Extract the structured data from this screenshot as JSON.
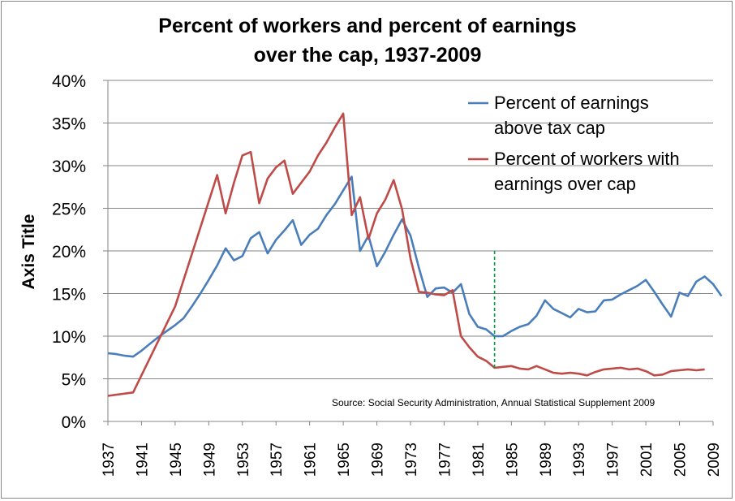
{
  "chart_data": {
    "type": "line",
    "title_line1": "Percent of workers and percent of earnings",
    "title_line2": "over the cap, 1937-2009",
    "ylabel": "Axis Title",
    "ylim": [
      0,
      40
    ],
    "xlim": [
      1937,
      2009
    ],
    "yticks": [
      "0%",
      "5%",
      "10%",
      "15%",
      "20%",
      "25%",
      "30%",
      "35%",
      "40%"
    ],
    "xticks": [
      "1937",
      "1941",
      "1945",
      "1949",
      "1953",
      "1957",
      "1961",
      "1965",
      "1969",
      "1973",
      "1977",
      "1981",
      "1985",
      "1989",
      "1993",
      "1997",
      "2001",
      "2005",
      "2009"
    ],
    "grid": "horizontal",
    "legend_position": "top-right",
    "source_note": "Source: Social Security Administration, Annual Statistical Supplement 2009",
    "vline": {
      "x": 1983,
      "color": "#009944",
      "style": "dashed"
    },
    "series": [
      {
        "name_line1": "Percent of earnings",
        "name_line2": "above tax cap",
        "color": "#4a7ebb",
        "points": [
          [
            1937,
            8.0
          ],
          [
            1938,
            7.9
          ],
          [
            1939,
            7.7
          ],
          [
            1940,
            7.6
          ],
          [
            1941,
            8.3
          ],
          [
            1942,
            9.1
          ],
          [
            1943,
            9.9
          ],
          [
            1944,
            10.6
          ],
          [
            1945,
            11.3
          ],
          [
            1946,
            12.1
          ],
          [
            1947,
            13.5
          ],
          [
            1948,
            15.0
          ],
          [
            1949,
            16.6
          ],
          [
            1950,
            18.3
          ],
          [
            1951,
            20.3
          ],
          [
            1952,
            18.9
          ],
          [
            1953,
            19.4
          ],
          [
            1954,
            21.5
          ],
          [
            1955,
            22.2
          ],
          [
            1956,
            19.7
          ],
          [
            1957,
            21.3
          ],
          [
            1958,
            22.4
          ],
          [
            1959,
            23.6
          ],
          [
            1960,
            20.7
          ],
          [
            1961,
            21.9
          ],
          [
            1962,
            22.6
          ],
          [
            1963,
            24.2
          ],
          [
            1964,
            25.5
          ],
          [
            1965,
            27.1
          ],
          [
            1966,
            28.7
          ],
          [
            1967,
            20.0
          ],
          [
            1968,
            21.8
          ],
          [
            1969,
            18.2
          ],
          [
            1970,
            19.9
          ],
          [
            1971,
            21.9
          ],
          [
            1972,
            23.7
          ],
          [
            1973,
            21.8
          ],
          [
            1974,
            18.0
          ],
          [
            1975,
            14.6
          ],
          [
            1976,
            15.6
          ],
          [
            1977,
            15.7
          ],
          [
            1978,
            15.1
          ],
          [
            1979,
            16.1
          ],
          [
            1980,
            12.6
          ],
          [
            1981,
            11.1
          ],
          [
            1982,
            10.8
          ],
          [
            1983,
            10.0
          ],
          [
            1984,
            10.0
          ],
          [
            1985,
            10.6
          ],
          [
            1986,
            11.1
          ],
          [
            1987,
            11.4
          ],
          [
            1988,
            12.4
          ],
          [
            1989,
            14.2
          ],
          [
            1990,
            13.2
          ],
          [
            1991,
            12.7
          ],
          [
            1992,
            12.2
          ],
          [
            1993,
            13.2
          ],
          [
            1994,
            12.8
          ],
          [
            1995,
            12.9
          ],
          [
            1996,
            14.2
          ],
          [
            1997,
            14.3
          ],
          [
            1998,
            14.9
          ],
          [
            1999,
            15.4
          ],
          [
            2000,
            15.9
          ],
          [
            2001,
            16.6
          ],
          [
            2002,
            15.2
          ],
          [
            2003,
            13.7
          ],
          [
            2004,
            12.3
          ],
          [
            2005,
            15.1
          ],
          [
            2006,
            14.7
          ],
          [
            2007,
            16.4
          ],
          [
            2008,
            17.0
          ],
          [
            2009,
            16.1
          ],
          [
            2010,
            14.7
          ]
        ]
      },
      {
        "name_line1": "Percent of workers with",
        "name_line2": "earnings over cap",
        "color": "#be4b48",
        "points": [
          [
            1937,
            3.0
          ],
          [
            1940,
            3.4
          ],
          [
            1945,
            13.5
          ],
          [
            1950,
            28.9
          ],
          [
            1951,
            24.4
          ],
          [
            1952,
            28.0
          ],
          [
            1953,
            31.2
          ],
          [
            1954,
            31.6
          ],
          [
            1955,
            25.6
          ],
          [
            1956,
            28.5
          ],
          [
            1957,
            29.8
          ],
          [
            1958,
            30.6
          ],
          [
            1959,
            26.7
          ],
          [
            1960,
            28.0
          ],
          [
            1961,
            29.3
          ],
          [
            1962,
            31.2
          ],
          [
            1963,
            32.7
          ],
          [
            1964,
            34.5
          ],
          [
            1965,
            36.1
          ],
          [
            1966,
            24.2
          ],
          [
            1967,
            26.3
          ],
          [
            1968,
            21.4
          ],
          [
            1969,
            24.4
          ],
          [
            1970,
            26.0
          ],
          [
            1971,
            28.3
          ],
          [
            1972,
            24.9
          ],
          [
            1973,
            19.1
          ],
          [
            1974,
            15.2
          ],
          [
            1975,
            15.1
          ],
          [
            1976,
            14.9
          ],
          [
            1977,
            14.8
          ],
          [
            1978,
            15.4
          ],
          [
            1979,
            10.0
          ],
          [
            1980,
            8.7
          ],
          [
            1981,
            7.6
          ],
          [
            1982,
            7.1
          ],
          [
            1983,
            6.3
          ],
          [
            1984,
            6.4
          ],
          [
            1985,
            6.5
          ],
          [
            1986,
            6.2
          ],
          [
            1987,
            6.1
          ],
          [
            1988,
            6.5
          ],
          [
            1989,
            6.1
          ],
          [
            1990,
            5.7
          ],
          [
            1991,
            5.6
          ],
          [
            1992,
            5.7
          ],
          [
            1993,
            5.6
          ],
          [
            1994,
            5.4
          ],
          [
            1995,
            5.8
          ],
          [
            1996,
            6.1
          ],
          [
            1997,
            6.2
          ],
          [
            1998,
            6.3
          ],
          [
            1999,
            6.1
          ],
          [
            2000,
            6.2
          ],
          [
            2001,
            5.9
          ],
          [
            2002,
            5.4
          ],
          [
            2003,
            5.5
          ],
          [
            2004,
            5.9
          ],
          [
            2005,
            6.0
          ],
          [
            2006,
            6.1
          ],
          [
            2007,
            6.0
          ],
          [
            2008,
            6.1
          ]
        ]
      }
    ]
  }
}
